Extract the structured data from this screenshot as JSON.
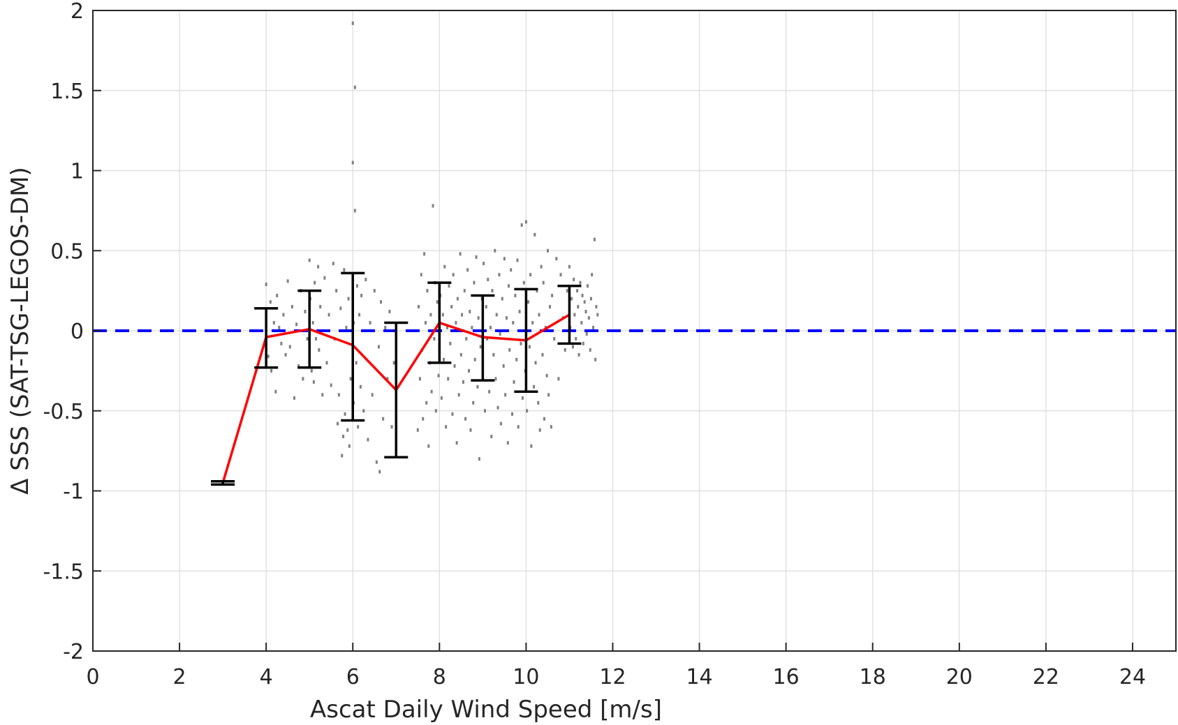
{
  "chart_data": {
    "type": "scatter",
    "title": "",
    "xlabel": "Ascat Daily Wind Speed [m/s]",
    "ylabel": "Δ SSS (SAT-TSG-LEGOS-DM)",
    "xlim": [
      0,
      25
    ],
    "ylim": [
      -2,
      2
    ],
    "xticks": [
      0,
      2,
      4,
      6,
      8,
      10,
      12,
      14,
      16,
      18,
      20,
      22,
      24
    ],
    "yticks": [
      2,
      1.5,
      1,
      0.5,
      0,
      -0.5,
      -1,
      -1.5,
      -2
    ],
    "xtick_labels": [
      "0",
      "2",
      "4",
      "6",
      "8",
      "10",
      "12",
      "14",
      "16",
      "18",
      "20",
      "22",
      "24"
    ],
    "ytick_labels": [
      "2",
      "1.5",
      "1",
      "0.5",
      "0",
      "-0.5",
      "-1",
      "-1.5",
      "-2"
    ],
    "grid": true,
    "reference_line": {
      "y": 0,
      "color": "#0000ff",
      "style": "dashed"
    },
    "colors": {
      "mean_line": "#ff0000",
      "error_bars": "#000000",
      "scatter": "#808080",
      "grid": "#dcdcdc",
      "axes": "#262626"
    },
    "series": [
      {
        "values": [
          {
            "x": 3,
            "y": -0.95,
            "low": -0.96,
            "high": -0.94
          },
          {
            "x": 4,
            "y": -0.04,
            "low": -0.23,
            "high": 0.14
          },
          {
            "x": 5,
            "y": 0.01,
            "low": -0.23,
            "high": 0.25
          },
          {
            "x": 6,
            "y": -0.09,
            "low": -0.56,
            "high": 0.36
          },
          {
            "x": 7,
            "y": -0.37,
            "low": -0.79,
            "high": 0.05
          },
          {
            "x": 8,
            "y": 0.05,
            "low": -0.2,
            "high": 0.3
          },
          {
            "x": 9,
            "y": -0.04,
            "low": -0.31,
            "high": 0.22
          },
          {
            "x": 10,
            "y": -0.06,
            "low": -0.38,
            "high": 0.26
          },
          {
            "x": 11,
            "y": 0.1,
            "low": -0.08,
            "high": 0.28
          }
        ]
      }
    ],
    "scatter_points": [
      [
        4.0,
        0.29
      ],
      [
        4.05,
        -0.16
      ],
      [
        4.1,
        0.18
      ],
      [
        4.12,
        -0.25
      ],
      [
        4.18,
        0.05
      ],
      [
        4.22,
        -0.38
      ],
      [
        4.25,
        0.22
      ],
      [
        4.3,
        0.02
      ],
      [
        4.35,
        -0.08
      ],
      [
        4.4,
        0.1
      ],
      [
        4.45,
        -0.15
      ],
      [
        4.5,
        0.31
      ],
      [
        4.55,
        -0.1
      ],
      [
        4.6,
        0.15
      ],
      [
        4.65,
        -0.42
      ],
      [
        4.7,
        0.04
      ],
      [
        4.75,
        -0.22
      ],
      [
        4.8,
        0.25
      ],
      [
        4.85,
        -0.3
      ],
      [
        4.9,
        0.12
      ],
      [
        4.95,
        -0.05
      ],
      [
        5.0,
        0.44
      ],
      [
        5.02,
        0.2
      ],
      [
        5.05,
        -0.25
      ],
      [
        5.08,
        0.05
      ],
      [
        5.1,
        -0.32
      ],
      [
        5.12,
        0.3
      ],
      [
        5.15,
        -0.05
      ],
      [
        5.2,
        0.4
      ],
      [
        5.22,
        -0.12
      ],
      [
        5.25,
        0.15
      ],
      [
        5.3,
        -0.4
      ],
      [
        5.35,
        0.33
      ],
      [
        5.4,
        -0.2
      ],
      [
        5.45,
        0.1
      ],
      [
        5.5,
        -0.34
      ],
      [
        5.55,
        0.42
      ],
      [
        5.58,
        -0.05
      ],
      [
        5.62,
        0.25
      ],
      [
        5.65,
        -0.58
      ],
      [
        5.68,
        -0.4
      ],
      [
        5.72,
        0.14
      ],
      [
        5.75,
        -0.78
      ],
      [
        5.78,
        -0.66
      ],
      [
        5.8,
        0.38
      ],
      [
        5.82,
        -0.52
      ],
      [
        5.85,
        0.02
      ],
      [
        5.88,
        -0.62
      ],
      [
        5.9,
        0.2
      ],
      [
        5.92,
        -0.72
      ],
      [
        5.95,
        -0.3
      ],
      [
        6.0,
        1.92
      ],
      [
        6.0,
        1.05
      ],
      [
        6.02,
        -0.45
      ],
      [
        6.02,
        0.05
      ],
      [
        6.05,
        1.52
      ],
      [
        6.05,
        0.75
      ],
      [
        6.08,
        -0.2
      ],
      [
        6.1,
        0.28
      ],
      [
        6.12,
        -0.6
      ],
      [
        6.15,
        0.1
      ],
      [
        6.18,
        -0.35
      ],
      [
        6.2,
        0.22
      ],
      [
        6.25,
        -0.5
      ],
      [
        6.3,
        0.32
      ],
      [
        6.35,
        -0.68
      ],
      [
        6.4,
        0.05
      ],
      [
        6.45,
        -0.4
      ],
      [
        6.5,
        0.25
      ],
      [
        6.55,
        -0.82
      ],
      [
        6.6,
        -0.1
      ],
      [
        6.62,
        -0.88
      ],
      [
        6.65,
        0.18
      ],
      [
        6.7,
        -0.55
      ],
      [
        6.75,
        0.02
      ],
      [
        6.8,
        -0.3
      ],
      [
        6.85,
        0.12
      ],
      [
        6.9,
        -0.6
      ],
      [
        6.95,
        -0.2
      ],
      [
        7.5,
        -0.62
      ],
      [
        7.52,
        0.15
      ],
      [
        7.55,
        -0.3
      ],
      [
        7.58,
        0.35
      ],
      [
        7.6,
        -0.12
      ],
      [
        7.62,
        -0.55
      ],
      [
        7.65,
        0.48
      ],
      [
        7.68,
        0.05
      ],
      [
        7.7,
        -0.45
      ],
      [
        7.72,
        0.25
      ],
      [
        7.75,
        -0.72
      ],
      [
        7.78,
        -0.2
      ],
      [
        7.8,
        0.1
      ],
      [
        7.82,
        -0.38
      ],
      [
        7.85,
        0.78
      ],
      [
        7.88,
        -0.05
      ],
      [
        7.9,
        0.3
      ],
      [
        7.92,
        -0.5
      ],
      [
        7.95,
        0.18
      ],
      [
        7.98,
        -0.28
      ],
      [
        8.02,
        0.22
      ],
      [
        8.05,
        -0.42
      ],
      [
        8.08,
        0.1
      ],
      [
        8.1,
        -0.18
      ],
      [
        8.12,
        0.4
      ],
      [
        8.15,
        -0.6
      ],
      [
        8.18,
        0.02
      ],
      [
        8.2,
        -0.3
      ],
      [
        8.22,
        0.28
      ],
      [
        8.25,
        -0.08
      ],
      [
        8.28,
        0.15
      ],
      [
        8.3,
        -0.52
      ],
      [
        8.32,
        0.35
      ],
      [
        8.35,
        -0.22
      ],
      [
        8.38,
        0.05
      ],
      [
        8.4,
        -0.7
      ],
      [
        8.42,
        0.2
      ],
      [
        8.45,
        -0.4
      ],
      [
        8.48,
        0.48
      ],
      [
        8.5,
        -0.15
      ],
      [
        8.52,
        0.1
      ],
      [
        8.55,
        -0.32
      ],
      [
        8.58,
        0.25
      ],
      [
        8.6,
        -0.55
      ],
      [
        8.62,
        -0.05
      ],
      [
        8.65,
        0.38
      ],
      [
        8.68,
        -0.25
      ],
      [
        8.7,
        0.12
      ],
      [
        8.72,
        -0.62
      ],
      [
        8.75,
        0.02
      ],
      [
        8.78,
        -0.45
      ],
      [
        8.8,
        0.3
      ],
      [
        8.82,
        -0.18
      ],
      [
        8.85,
        0.46
      ],
      [
        8.88,
        -0.35
      ],
      [
        8.9,
        0.08
      ],
      [
        8.92,
        -0.8
      ],
      [
        8.95,
        -0.1
      ],
      [
        8.98,
        0.2
      ],
      [
        9.0,
        -0.28
      ],
      [
        9.02,
        0.42
      ],
      [
        9.05,
        -0.5
      ],
      [
        9.08,
        0.15
      ],
      [
        9.1,
        -0.05
      ],
      [
        9.12,
        0.32
      ],
      [
        9.15,
        -0.38
      ],
      [
        9.18,
        0.02
      ],
      [
        9.2,
        -0.66
      ],
      [
        9.22,
        0.25
      ],
      [
        9.25,
        -0.15
      ],
      [
        9.28,
        0.5
      ],
      [
        9.3,
        -0.3
      ],
      [
        9.32,
        0.1
      ],
      [
        9.35,
        -0.48
      ],
      [
        9.38,
        0.35
      ],
      [
        9.4,
        -0.02
      ],
      [
        9.42,
        -0.58
      ],
      [
        9.45,
        0.2
      ],
      [
        9.48,
        -0.22
      ],
      [
        9.5,
        0.45
      ],
      [
        9.52,
        -0.4
      ],
      [
        9.55,
        0.08
      ],
      [
        9.58,
        -0.7
      ],
      [
        9.6,
        0.28
      ],
      [
        9.62,
        -0.12
      ],
      [
        9.65,
        0.38
      ],
      [
        9.68,
        -0.52
      ],
      [
        9.7,
        0.05
      ],
      [
        9.72,
        -0.32
      ],
      [
        9.75,
        0.22
      ],
      [
        9.78,
        -0.18
      ],
      [
        9.8,
        0.44
      ],
      [
        9.82,
        -0.6
      ],
      [
        9.85,
        0.12
      ],
      [
        9.88,
        -0.08
      ],
      [
        9.9,
        0.66
      ],
      [
        9.92,
        -0.42
      ],
      [
        9.95,
        0.3
      ],
      [
        9.98,
        -0.25
      ],
      [
        10.0,
        0.68
      ],
      [
        10.02,
        -0.5
      ],
      [
        10.05,
        0.18
      ],
      [
        10.08,
        -0.1
      ],
      [
        10.1,
        0.35
      ],
      [
        10.12,
        -0.72
      ],
      [
        10.15,
        0.05
      ],
      [
        10.18,
        -0.35
      ],
      [
        10.2,
        0.6
      ],
      [
        10.22,
        -0.2
      ],
      [
        10.25,
        0.25
      ],
      [
        10.28,
        -0.45
      ],
      [
        10.3,
        0.1
      ],
      [
        10.32,
        -0.62
      ],
      [
        10.35,
        0.4
      ],
      [
        10.38,
        -0.15
      ],
      [
        10.4,
        0.3
      ],
      [
        10.42,
        -0.55
      ],
      [
        10.45,
        0.02
      ],
      [
        10.48,
        -0.28
      ],
      [
        10.5,
        0.5
      ],
      [
        10.52,
        -0.4
      ],
      [
        10.55,
        0.15
      ],
      [
        10.58,
        -0.6
      ],
      [
        10.6,
        0.22
      ],
      [
        10.65,
        -0.05
      ],
      [
        10.7,
        0.45
      ],
      [
        10.75,
        -0.3
      ],
      [
        10.8,
        0.35
      ],
      [
        10.85,
        0.08
      ],
      [
        10.9,
        -0.12
      ],
      [
        10.95,
        0.25
      ],
      [
        11.0,
        0.4
      ],
      [
        11.02,
        0.02
      ],
      [
        11.05,
        0.2
      ],
      [
        11.08,
        -0.1
      ],
      [
        11.1,
        0.32
      ],
      [
        11.12,
        0.1
      ],
      [
        11.15,
        -0.05
      ],
      [
        11.18,
        0.25
      ],
      [
        11.2,
        0.15
      ],
      [
        11.22,
        -0.15
      ],
      [
        11.25,
        0.3
      ],
      [
        11.28,
        0.05
      ],
      [
        11.3,
        0.22
      ],
      [
        11.32,
        -0.08
      ],
      [
        11.35,
        0.18
      ],
      [
        11.38,
        0.12
      ],
      [
        11.4,
        -0.02
      ],
      [
        11.42,
        0.28
      ],
      [
        11.45,
        0.08
      ],
      [
        11.48,
        -0.12
      ],
      [
        11.5,
        0.2
      ],
      [
        11.52,
        0.35
      ],
      [
        11.55,
        0.02
      ],
      [
        11.58,
        0.57
      ],
      [
        11.6,
        -0.18
      ],
      [
        11.62,
        0.15
      ],
      [
        11.65,
        0.1
      ]
    ]
  }
}
